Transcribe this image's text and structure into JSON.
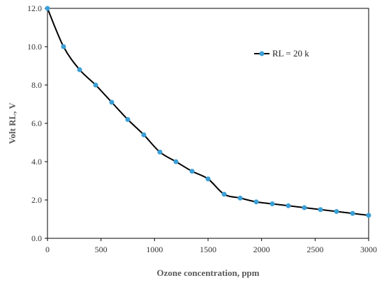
{
  "chart_data": {
    "type": "line",
    "title": "",
    "xlabel": "Ozone concentration, ppm",
    "ylabel": "Volt RL, V",
    "xlim": [
      0,
      3000
    ],
    "ylim": [
      0,
      12
    ],
    "x_ticks": [
      "0",
      "500",
      "1000",
      "1500",
      "2000",
      "2500",
      "3000"
    ],
    "y_ticks": [
      "0.0",
      "2.0",
      "4.0",
      "6.0",
      "8.0",
      "10.0",
      "12.0"
    ],
    "grid": false,
    "legend_position": "top-right",
    "series": [
      {
        "name": "RL = 20 k",
        "line_color": "#000000",
        "marker_color": "#3a9fd6",
        "x": [
          0,
          150,
          300,
          450,
          600,
          750,
          900,
          1050,
          1200,
          1350,
          1500,
          1650,
          1800,
          1950,
          2100,
          2250,
          2400,
          2550,
          2700,
          2850,
          3000
        ],
        "y": [
          12.0,
          10.0,
          8.8,
          8.0,
          7.1,
          6.2,
          5.4,
          4.5,
          4.0,
          3.5,
          3.1,
          2.3,
          2.1,
          1.9,
          1.8,
          1.7,
          1.6,
          1.5,
          1.4,
          1.3,
          1.2
        ]
      }
    ]
  }
}
